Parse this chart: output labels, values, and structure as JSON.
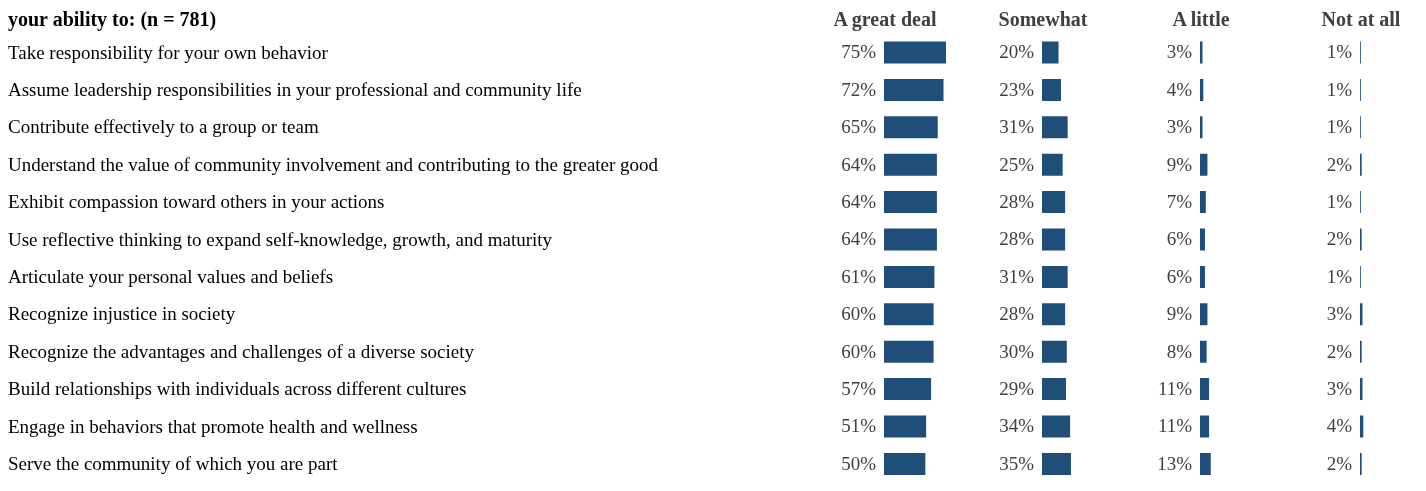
{
  "chart_data": [
    {
      "type": "bar",
      "orientation": "horizontal",
      "title": "your ability to: (n = 781)",
      "tick_labels": "y",
      "categories": [
        "Take responsibility for your own behavior",
        "Assume leadership responsibilities in your professional and community life",
        "Contribute effectively to a group or team",
        "Understand the value of community involvement and contributing to the greater good",
        "Exhibit compassion toward others in your actions",
        "Use reflective thinking to expand self-knowledge, growth, and maturity",
        "Articulate your personal values and beliefs",
        "Recognize injustice in society",
        "Recognize the advantages and challenges of a diverse society",
        "Build relationships with individuals across different cultures",
        "Engage in behaviors that promote health and wellness",
        "Serve the community of which you are part"
      ],
      "series": [
        {
          "name": "A great deal",
          "color": "#1f4e79",
          "values": [
            75,
            72,
            65,
            64,
            64,
            64,
            61,
            60,
            60,
            57,
            51,
            50
          ],
          "value_labels": [
            "75%",
            "72%",
            "65%",
            "64%",
            "64%",
            "64%",
            "61%",
            "60%",
            "60%",
            "57%",
            "51%",
            "50%"
          ]
        }
      ]
    },
    {
      "type": "bar",
      "orientation": "horizontal",
      "tick_labels": false,
      "categories": [
        null,
        null,
        null,
        null,
        null,
        null,
        null,
        null,
        null,
        null,
        null,
        null
      ],
      "series": [
        {
          "name": "Somewhat",
          "color": "#1f4e79",
          "values": [
            20,
            23,
            31,
            25,
            28,
            28,
            31,
            28,
            30,
            29,
            34,
            35
          ],
          "value_labels": [
            "20%",
            "23%",
            "31%",
            "25%",
            "28%",
            "28%",
            "31%",
            "28%",
            "30%",
            "29%",
            "34%",
            "35%"
          ]
        }
      ]
    },
    {
      "type": "bar",
      "orientation": "horizontal",
      "tick_labels": false,
      "categories": [
        null,
        null,
        null,
        null,
        null,
        null,
        null,
        null,
        null,
        null,
        null,
        null
      ],
      "series": [
        {
          "name": "A little",
          "color": "#1f4e79",
          "values": [
            3,
            4,
            3,
            9,
            7,
            6,
            6,
            9,
            8,
            11,
            11,
            13
          ],
          "value_labels": [
            "3%",
            "4%",
            "3%",
            "9%",
            "7%",
            "6%",
            "6%",
            "9%",
            "8%",
            "11%",
            "11%",
            "13%"
          ]
        }
      ]
    },
    {
      "type": "bar",
      "orientation": "horizontal",
      "tick_labels": false,
      "categories": [
        null,
        null,
        null,
        null,
        null,
        null,
        null,
        null,
        null,
        null,
        null,
        null
      ],
      "series": [
        {
          "name": "Not at all",
          "color": "#1f4e79",
          "values": [
            1,
            1,
            1,
            2,
            1,
            2,
            1,
            3,
            2,
            3,
            4,
            2
          ],
          "value_labels": [
            "1%",
            "1%",
            "1%",
            "2%",
            "1%",
            "2%",
            "1%",
            "3%",
            "2%",
            "3%",
            "4%",
            "2%"
          ]
        }
      ]
    }
  ]
}
